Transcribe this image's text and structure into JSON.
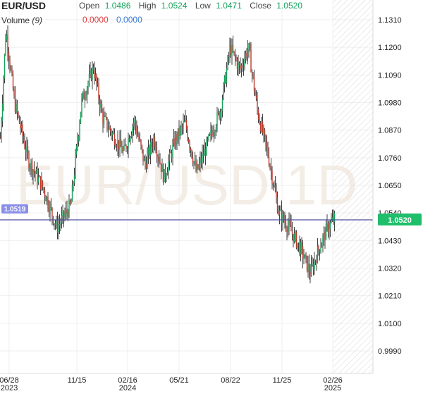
{
  "header": {
    "symbol": "EUR/USD",
    "open_label": "Open",
    "open_value": "1.0486",
    "high_label": "High",
    "high_value": "1.0524",
    "low_label": "Low",
    "low_value": "1.0471",
    "close_label": "Close",
    "close_value": "1.0520",
    "volume_label": "Volume",
    "volume_period": "(9)",
    "volume_value_1": "0.0000",
    "volume_value_2": "0.0000"
  },
  "watermark": "EUR/USD 1D",
  "colors": {
    "up": "#15a05a",
    "down": "#c0392b",
    "line": "#4a4f9c",
    "last_price_bg": "#1fbe6b",
    "prev_close_bg": "#8a8fe8",
    "value_green": "#17a35d",
    "value_red": "#e03b3b",
    "value_blue": "#3c7ad6",
    "grid": "#efefef"
  },
  "chart_data": {
    "type": "candlestick",
    "title": "EUR/USD",
    "interval": "1D",
    "ylim": [
      0.985,
      1.135
    ],
    "y_ticks": [
      "1.1310",
      "1.1200",
      "1.1090",
      "1.0980",
      "1.0870",
      "1.0760",
      "1.0650",
      "1.0540",
      "1.0430",
      "1.0320",
      "1.0210",
      "1.0100",
      "0.9990"
    ],
    "x_ticks": [
      {
        "label": "06/28",
        "sub": "2023"
      },
      {
        "label": "11/15",
        "sub": ""
      },
      {
        "label": "02/16",
        "sub": "2024"
      },
      {
        "label": "05/21",
        "sub": ""
      },
      {
        "label": "08/22",
        "sub": ""
      },
      {
        "label": "11/25",
        "sub": ""
      },
      {
        "label": "02/26",
        "sub": "2025"
      }
    ],
    "last_price": "1.0520",
    "reference_line": "1.0519",
    "series": [
      {
        "name": "EUR/USD",
        "close_path": [
          {
            "t": 0,
            "v": 1.084
          },
          {
            "t": 8,
            "v": 1.127
          },
          {
            "t": 20,
            "v": 1.098
          },
          {
            "t": 40,
            "v": 1.075
          },
          {
            "t": 62,
            "v": 1.063
          },
          {
            "t": 80,
            "v": 1.048
          },
          {
            "t": 100,
            "v": 1.057
          },
          {
            "t": 115,
            "v": 1.098
          },
          {
            "t": 132,
            "v": 1.112
          },
          {
            "t": 145,
            "v": 1.092
          },
          {
            "t": 160,
            "v": 1.085
          },
          {
            "t": 175,
            "v": 1.078
          },
          {
            "t": 190,
            "v": 1.091
          },
          {
            "t": 205,
            "v": 1.073
          },
          {
            "t": 218,
            "v": 1.084
          },
          {
            "t": 232,
            "v": 1.068
          },
          {
            "t": 248,
            "v": 1.083
          },
          {
            "t": 262,
            "v": 1.09
          },
          {
            "t": 278,
            "v": 1.07
          },
          {
            "t": 296,
            "v": 1.083
          },
          {
            "t": 312,
            "v": 1.095
          },
          {
            "t": 326,
            "v": 1.12
          },
          {
            "t": 340,
            "v": 1.111
          },
          {
            "t": 352,
            "v": 1.12
          },
          {
            "t": 365,
            "v": 1.094
          },
          {
            "t": 380,
            "v": 1.077
          },
          {
            "t": 395,
            "v": 1.054
          },
          {
            "t": 410,
            "v": 1.048
          },
          {
            "t": 425,
            "v": 1.04
          },
          {
            "t": 440,
            "v": 1.03
          },
          {
            "t": 452,
            "v": 1.04
          },
          {
            "t": 464,
            "v": 1.048
          },
          {
            "t": 475,
            "v": 1.052
          }
        ]
      }
    ]
  }
}
